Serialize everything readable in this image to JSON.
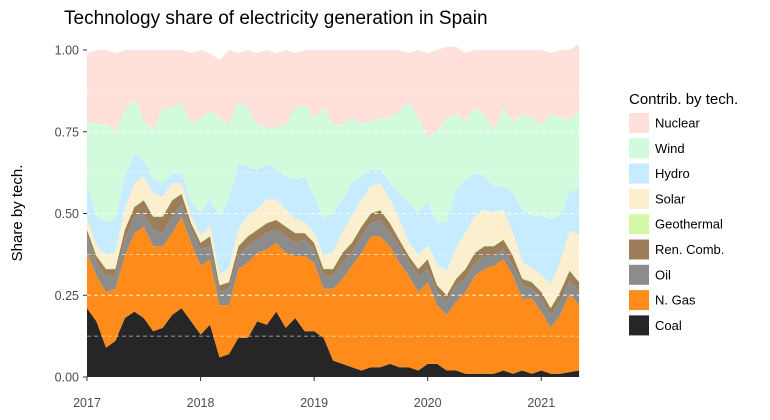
{
  "chart_data": {
    "type": "area",
    "stacked": true,
    "title": "Technology share of electricity generation in Spain",
    "xlabel": "",
    "ylabel": "Share by tech.",
    "xlim": [
      2017.0,
      2021.35
    ],
    "ylim": [
      0,
      1
    ],
    "x_ticks": [
      2017,
      2018,
      2019,
      2020,
      2021
    ],
    "x_tick_labels": [
      "2017",
      "2018",
      "2019",
      "2020",
      "2021"
    ],
    "y_ticks": [
      0,
      0.25,
      0.5,
      0.75,
      1.0
    ],
    "y_tick_labels": [
      "0.00",
      "0.25",
      "0.50",
      "0.75",
      "1.00"
    ],
    "grid": "dashed horizontal lines at 0.125 intervals",
    "legend": {
      "title": "Contrib. by tech.",
      "placement": "right",
      "order": [
        "Nuclear",
        "Wind",
        "Hydro",
        "Solar",
        "Geothermal",
        "Ren. Comb.",
        "Oil",
        "N. Gas",
        "Coal"
      ]
    },
    "x": [
      2017.0,
      2017.083,
      2017.167,
      2017.25,
      2017.333,
      2017.417,
      2017.5,
      2017.583,
      2017.667,
      2017.75,
      2017.833,
      2017.917,
      2018.0,
      2018.083,
      2018.167,
      2018.25,
      2018.333,
      2018.417,
      2018.5,
      2018.583,
      2018.667,
      2018.75,
      2018.833,
      2018.917,
      2019.0,
      2019.083,
      2019.167,
      2019.25,
      2019.333,
      2019.417,
      2019.5,
      2019.583,
      2019.667,
      2019.75,
      2019.833,
      2019.917,
      2020.0,
      2020.083,
      2020.167,
      2020.25,
      2020.333,
      2020.417,
      2020.5,
      2020.583,
      2020.667,
      2020.75,
      2020.833,
      2020.917,
      2021.0,
      2021.083,
      2021.167,
      2021.25,
      2021.333
    ],
    "series": [
      {
        "name": "Coal",
        "color": "#262626",
        "values": [
          0.21,
          0.17,
          0.09,
          0.11,
          0.18,
          0.2,
          0.18,
          0.14,
          0.15,
          0.19,
          0.21,
          0.17,
          0.13,
          0.16,
          0.06,
          0.07,
          0.12,
          0.12,
          0.17,
          0.16,
          0.2,
          0.15,
          0.18,
          0.14,
          0.14,
          0.12,
          0.05,
          0.04,
          0.03,
          0.02,
          0.03,
          0.03,
          0.04,
          0.03,
          0.03,
          0.02,
          0.04,
          0.04,
          0.02,
          0.02,
          0.01,
          0.01,
          0.01,
          0.01,
          0.02,
          0.01,
          0.02,
          0.01,
          0.02,
          0.01,
          0.01,
          0.015,
          0.02
        ]
      },
      {
        "name": "N. Gas",
        "color": "#ff8c1a",
        "values": [
          0.17,
          0.14,
          0.17,
          0.16,
          0.19,
          0.24,
          0.28,
          0.26,
          0.25,
          0.25,
          0.28,
          0.24,
          0.21,
          0.2,
          0.16,
          0.15,
          0.21,
          0.23,
          0.21,
          0.23,
          0.21,
          0.23,
          0.19,
          0.23,
          0.21,
          0.15,
          0.22,
          0.26,
          0.31,
          0.36,
          0.4,
          0.4,
          0.36,
          0.32,
          0.28,
          0.24,
          0.25,
          0.18,
          0.17,
          0.21,
          0.25,
          0.3,
          0.32,
          0.33,
          0.34,
          0.3,
          0.22,
          0.23,
          0.18,
          0.14,
          0.18,
          0.24,
          0.2
        ]
      },
      {
        "name": "Oil",
        "color": "#8c8c8c",
        "values": [
          0.05,
          0.04,
          0.05,
          0.04,
          0.05,
          0.05,
          0.04,
          0.05,
          0.04,
          0.05,
          0.04,
          0.04,
          0.05,
          0.04,
          0.04,
          0.05,
          0.04,
          0.05,
          0.04,
          0.05,
          0.04,
          0.05,
          0.04,
          0.05,
          0.04,
          0.04,
          0.04,
          0.05,
          0.04,
          0.05,
          0.04,
          0.05,
          0.04,
          0.05,
          0.04,
          0.05,
          0.04,
          0.04,
          0.04,
          0.05,
          0.04,
          0.04,
          0.04,
          0.03,
          0.03,
          0.03,
          0.04,
          0.03,
          0.04,
          0.04,
          0.04,
          0.04,
          0.04
        ]
      },
      {
        "name": "Ren. Comb.",
        "color": "#9c7f5a",
        "values": [
          0.02,
          0.02,
          0.02,
          0.02,
          0.03,
          0.03,
          0.04,
          0.04,
          0.05,
          0.05,
          0.03,
          0.02,
          0.02,
          0.03,
          0.02,
          0.02,
          0.03,
          0.03,
          0.03,
          0.03,
          0.03,
          0.03,
          0.03,
          0.02,
          0.02,
          0.02,
          0.02,
          0.03,
          0.03,
          0.03,
          0.03,
          0.03,
          0.03,
          0.02,
          0.02,
          0.02,
          0.03,
          0.02,
          0.02,
          0.02,
          0.03,
          0.03,
          0.03,
          0.03,
          0.03,
          0.03,
          0.02,
          0.02,
          0.02,
          0.02,
          0.03,
          0.03,
          0.03
        ]
      },
      {
        "name": "Geothermal",
        "color": "#d4f7a8",
        "values": [
          0.003,
          0.003,
          0.003,
          0.003,
          0.003,
          0.003,
          0.003,
          0.003,
          0.003,
          0.003,
          0.003,
          0.003,
          0.003,
          0.003,
          0.003,
          0.003,
          0.003,
          0.003,
          0.003,
          0.003,
          0.003,
          0.003,
          0.003,
          0.003,
          0.003,
          0.003,
          0.003,
          0.003,
          0.003,
          0.003,
          0.003,
          0.003,
          0.003,
          0.003,
          0.003,
          0.003,
          0.003,
          0.003,
          0.003,
          0.003,
          0.003,
          0.003,
          0.003,
          0.003,
          0.003,
          0.003,
          0.003,
          0.003,
          0.003,
          0.003,
          0.003,
          0.003,
          0.003
        ]
      },
      {
        "name": "Solar",
        "color": "#fcefcf",
        "values": [
          0.03,
          0.03,
          0.04,
          0.05,
          0.06,
          0.07,
          0.07,
          0.07,
          0.06,
          0.05,
          0.03,
          0.02,
          0.02,
          0.03,
          0.03,
          0.04,
          0.05,
          0.06,
          0.06,
          0.07,
          0.06,
          0.05,
          0.04,
          0.03,
          0.03,
          0.04,
          0.05,
          0.06,
          0.08,
          0.08,
          0.08,
          0.08,
          0.07,
          0.06,
          0.04,
          0.04,
          0.04,
          0.06,
          0.07,
          0.09,
          0.11,
          0.11,
          0.11,
          0.1,
          0.09,
          0.07,
          0.05,
          0.04,
          0.05,
          0.07,
          0.09,
          0.12,
          0.14
        ]
      },
      {
        "name": "Hydro",
        "color": "#c8ecff",
        "values": [
          0.1,
          0.09,
          0.1,
          0.1,
          0.1,
          0.09,
          0.05,
          0.04,
          0.04,
          0.03,
          0.03,
          0.04,
          0.07,
          0.08,
          0.18,
          0.21,
          0.2,
          0.15,
          0.12,
          0.11,
          0.09,
          0.1,
          0.12,
          0.14,
          0.11,
          0.11,
          0.12,
          0.1,
          0.1,
          0.07,
          0.05,
          0.04,
          0.05,
          0.08,
          0.12,
          0.13,
          0.13,
          0.13,
          0.15,
          0.18,
          0.16,
          0.13,
          0.1,
          0.08,
          0.07,
          0.12,
          0.16,
          0.16,
          0.18,
          0.2,
          0.14,
          0.12,
          0.14
        ]
      },
      {
        "name": "Wind",
        "color": "#d1fbdc",
        "values": [
          0.2,
          0.28,
          0.3,
          0.27,
          0.2,
          0.17,
          0.12,
          0.15,
          0.23,
          0.2,
          0.22,
          0.24,
          0.29,
          0.27,
          0.3,
          0.23,
          0.19,
          0.18,
          0.14,
          0.11,
          0.13,
          0.16,
          0.22,
          0.22,
          0.24,
          0.34,
          0.27,
          0.23,
          0.2,
          0.16,
          0.15,
          0.16,
          0.2,
          0.25,
          0.31,
          0.29,
          0.2,
          0.28,
          0.32,
          0.23,
          0.18,
          0.2,
          0.19,
          0.17,
          0.24,
          0.22,
          0.29,
          0.3,
          0.28,
          0.32,
          0.3,
          0.22,
          0.24
        ]
      },
      {
        "name": "Nuclear",
        "color": "#ffe0db",
        "values": [
          0.207,
          0.227,
          0.227,
          0.237,
          0.187,
          0.147,
          0.217,
          0.247,
          0.177,
          0.177,
          0.157,
          0.217,
          0.207,
          0.177,
          0.177,
          0.227,
          0.147,
          0.177,
          0.217,
          0.237,
          0.227,
          0.227,
          0.167,
          0.167,
          0.207,
          0.177,
          0.227,
          0.227,
          0.207,
          0.227,
          0.217,
          0.207,
          0.207,
          0.187,
          0.147,
          0.207,
          0.257,
          0.247,
          0.217,
          0.207,
          0.207,
          0.177,
          0.197,
          0.247,
          0.177,
          0.217,
          0.197,
          0.207,
          0.227,
          0.187,
          0.207,
          0.212,
          0.207
        ]
      }
    ]
  }
}
